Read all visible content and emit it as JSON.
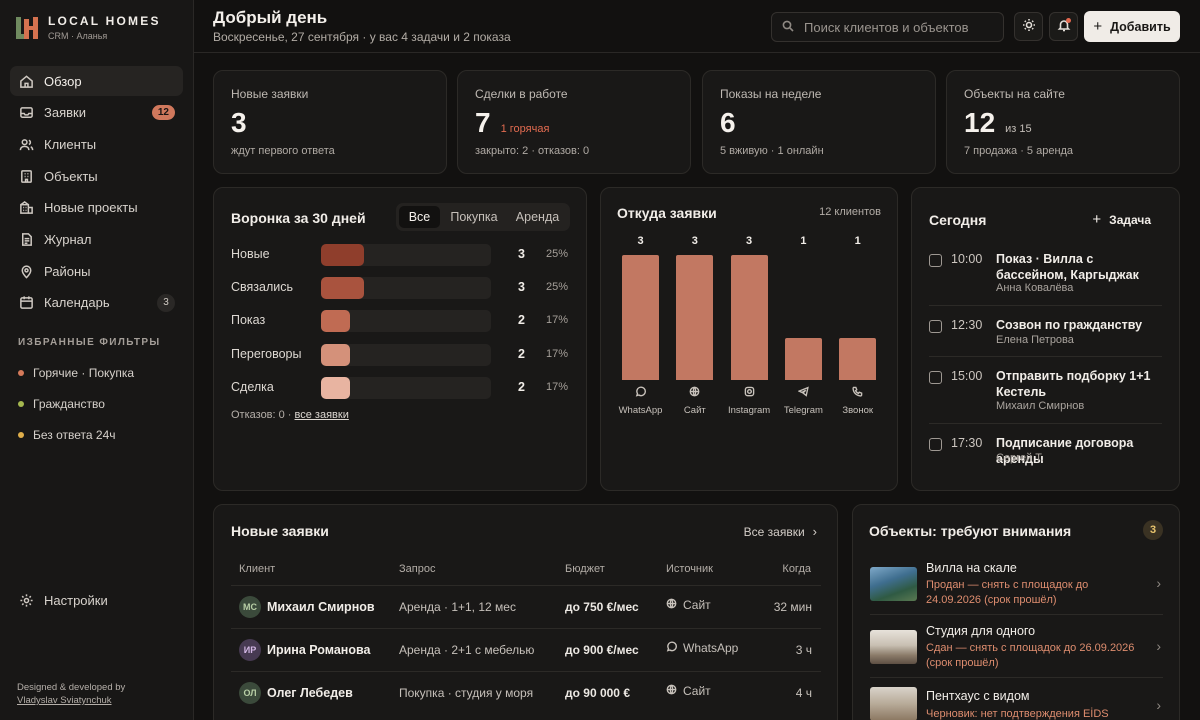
{
  "brand": {
    "name": "LOCAL HOMES",
    "sub": "CRM · Аланья"
  },
  "nav": [
    {
      "label": "Обзор",
      "icon": "home-icon",
      "active": true
    },
    {
      "label": "Заявки",
      "icon": "inbox-icon",
      "badge": "12"
    },
    {
      "label": "Клиенты",
      "icon": "users-icon"
    },
    {
      "label": "Объекты",
      "icon": "building-icon"
    },
    {
      "label": "Новые проекты",
      "icon": "crane-icon"
    },
    {
      "label": "Журнал",
      "icon": "journal-icon"
    },
    {
      "label": "Районы",
      "icon": "map-pin-icon"
    },
    {
      "label": "Календарь",
      "icon": "calendar-icon",
      "badge": "3"
    }
  ],
  "favorites": {
    "title": "ИЗБРАННЫЕ ФИЛЬТРЫ",
    "items": [
      {
        "label": "Горячие · Покупка",
        "color": "#d57a5a"
      },
      {
        "label": "Гражданство",
        "color": "#a5b84f"
      },
      {
        "label": "Без ответа 24ч",
        "color": "#dfae4a"
      }
    ]
  },
  "settings_label": "Настройки",
  "credit": {
    "line1": "Designed & developed by",
    "line2": "Vladyslav Sviatynchuk"
  },
  "header": {
    "title": "Добрый день",
    "subtitle": "Воскресенье, 27 сентября · у вас 4 задачи и 2 показа",
    "search_placeholder": "Поиск клиентов и объектов",
    "add_label": "Добавить"
  },
  "stats": [
    {
      "label": "Новые заявки",
      "value": "3",
      "aside": "",
      "foot": "ждут первого ответа"
    },
    {
      "label": "Сделки в работе",
      "value": "7",
      "aside": "1 горячая",
      "foot": "закрыто: 2 · отказов: 0"
    },
    {
      "label": "Показы на неделе",
      "value": "6",
      "aside": "",
      "foot": "5 вживую · 1 онлайн"
    },
    {
      "label": "Объекты на сайте",
      "value": "12",
      "aside": "из 15",
      "foot": "7 продажа · 5 аренда"
    }
  ],
  "funnel": {
    "title": "Воронка за 30 дней",
    "tabs": [
      "Все",
      "Покупка",
      "Аренда"
    ],
    "active_tab": 0,
    "rows": [
      {
        "label": "Новые",
        "count": "3",
        "pct": "25%",
        "share": 0.25,
        "color": "#8f3e2c"
      },
      {
        "label": "Связались",
        "count": "3",
        "pct": "25%",
        "share": 0.25,
        "color": "#a9533e"
      },
      {
        "label": "Показ",
        "count": "2",
        "pct": "17%",
        "share": 0.17,
        "color": "#c06b53"
      },
      {
        "label": "Переговоры",
        "count": "2",
        "pct": "17%",
        "share": 0.17,
        "color": "#d4917a"
      },
      {
        "label": "Сделка",
        "count": "2",
        "pct": "17%",
        "share": 0.17,
        "color": "#e8b4a1"
      }
    ],
    "foot_text": "Отказов: 0 · ",
    "foot_link": "все заявки"
  },
  "chart_data": {
    "type": "bar",
    "title": "Откуда заявки",
    "subtitle": "12 клиентов",
    "categories": [
      "WhatsApp",
      "Сайт",
      "Instagram",
      "Telegram",
      "Звонок"
    ],
    "values": [
      3,
      3,
      3,
      1,
      1
    ],
    "ylim": [
      0,
      3
    ],
    "grid": false,
    "color": "#c27862"
  },
  "chart_icons": [
    "whatsapp-icon",
    "globe-icon",
    "instagram-icon",
    "telegram-icon",
    "phone-icon"
  ],
  "today": {
    "title": "Сегодня",
    "add_label": "Задача",
    "tasks": [
      {
        "time": "10:00",
        "title": "Показ · Вилла с бассейном, Каргыджак",
        "person": "Анна Ковалёва"
      },
      {
        "time": "12:30",
        "title": "Созвон по гражданству",
        "person": "Елена Петрова"
      },
      {
        "time": "15:00",
        "title": "Отправить подборку 1+1 Кестель",
        "person": "Михаил Смирнов"
      },
      {
        "time": "17:30",
        "title": "Подписание договора аренды",
        "person": "Сергей Т."
      }
    ]
  },
  "leads": {
    "title": "Новые заявки",
    "all_label": "Все заявки",
    "columns": [
      "Клиент",
      "Запрос",
      "Бюджет",
      "Источник",
      "Когда"
    ],
    "rows": [
      {
        "initials": "МС",
        "avatar_bg": "#3b4a3b",
        "avatar_fg": "#b8cfa6",
        "name": "Михаил Смирнов",
        "request": "Аренда · 1+1, 12 мес",
        "budget": "до 750 €/мес",
        "source": "Сайт",
        "source_icon": "globe-icon",
        "when": "32 мин"
      },
      {
        "initials": "ИР",
        "avatar_bg": "#473a52",
        "avatar_fg": "#d4b8e6",
        "name": "Ирина Романова",
        "request": "Аренда · 2+1 с мебелью",
        "budget": "до 900 €/мес",
        "source": "WhatsApp",
        "source_icon": "whatsapp-icon",
        "when": "3 ч"
      },
      {
        "initials": "ОЛ",
        "avatar_bg": "#3b4a3b",
        "avatar_fg": "#b8cfa6",
        "name": "Олег Лебедев",
        "request": "Покупка · студия у моря",
        "budget": "до 90 000 €",
        "source": "Сайт",
        "source_icon": "globe-icon",
        "when": "4 ч"
      }
    ]
  },
  "attention": {
    "title": "Объекты: требуют внимания",
    "count": "3",
    "items": [
      {
        "title": "Вилла на скале",
        "note": "Продан — снять с площадок до 24.09.2026 (срок прошёл)"
      },
      {
        "title": "Студия для одного",
        "note": "Сдан — снять с площадок до 26.09.2026 (срок прошёл)"
      },
      {
        "title": "Пентхаус с видом",
        "note": "Черновик: нет подтверждения EİDS"
      }
    ]
  }
}
